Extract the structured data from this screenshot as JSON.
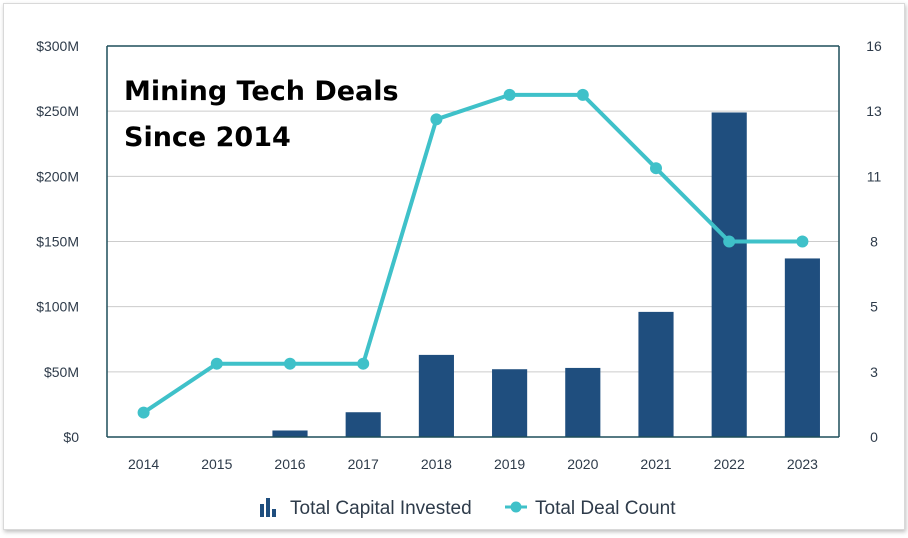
{
  "chart_data": {
    "type": "bar",
    "title_lines": [
      "Mining Tech Deals",
      "Since 2014"
    ],
    "categories": [
      "2014",
      "2015",
      "2016",
      "2017",
      "2018",
      "2019",
      "2020",
      "2021",
      "2022",
      "2023"
    ],
    "series": [
      {
        "name": "Total Capital Invested",
        "type": "bar",
        "axis": "left",
        "values": [
          0,
          0,
          5,
          19,
          63,
          52,
          53,
          96,
          249,
          137
        ]
      },
      {
        "name": "Total Deal Count",
        "type": "line",
        "axis": "right",
        "values": [
          1,
          3,
          3,
          3,
          13,
          14,
          14,
          11,
          8,
          8
        ]
      }
    ],
    "y_left": {
      "min": 0,
      "max": 300,
      "ticks": [
        "$0",
        "$50M",
        "$100M",
        "$150M",
        "$200M",
        "$250M",
        "$300M"
      ]
    },
    "y_right": {
      "min": 0,
      "max": 16,
      "ticks": [
        "0",
        "3",
        "5",
        "8",
        "11",
        "13",
        "16"
      ]
    },
    "grid": true,
    "legend_position": "bottom",
    "colors": {
      "bar": "#1f4e7e",
      "line": "#3fc1c9",
      "axis": "#1f4e5a",
      "grid": "#cccccc"
    }
  }
}
